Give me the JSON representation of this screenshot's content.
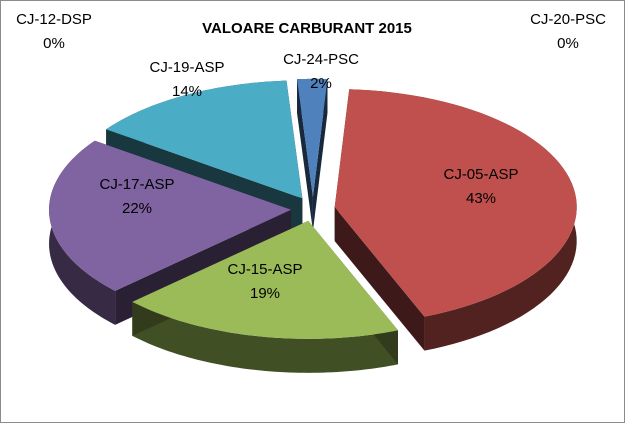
{
  "chart_data": {
    "type": "pie",
    "variant": "3d-exploded",
    "title": "VALOARE CARBURANT 2015",
    "slices": [
      {
        "name": "CJ-05-ASP",
        "value": 43,
        "label": "43%",
        "color": "#c0504d"
      },
      {
        "name": "CJ-15-ASP",
        "value": 19,
        "label": "19%",
        "color": "#9bbb59"
      },
      {
        "name": "CJ-17-ASP",
        "value": 22,
        "label": "22%",
        "color": "#8064a2"
      },
      {
        "name": "CJ-19-ASP",
        "value": 14,
        "label": "14%",
        "color": "#4bacc6"
      },
      {
        "name": "CJ-24-PSC",
        "value": 2,
        "label": "2%",
        "color": "#4f81bd"
      },
      {
        "name": "CJ-12-DSP",
        "value": 0,
        "label": "0%",
        "color": "#f79646"
      },
      {
        "name": "CJ-20-PSC",
        "value": 0,
        "label": "0%",
        "color": "#2c4d75"
      }
    ],
    "legend": "none"
  }
}
